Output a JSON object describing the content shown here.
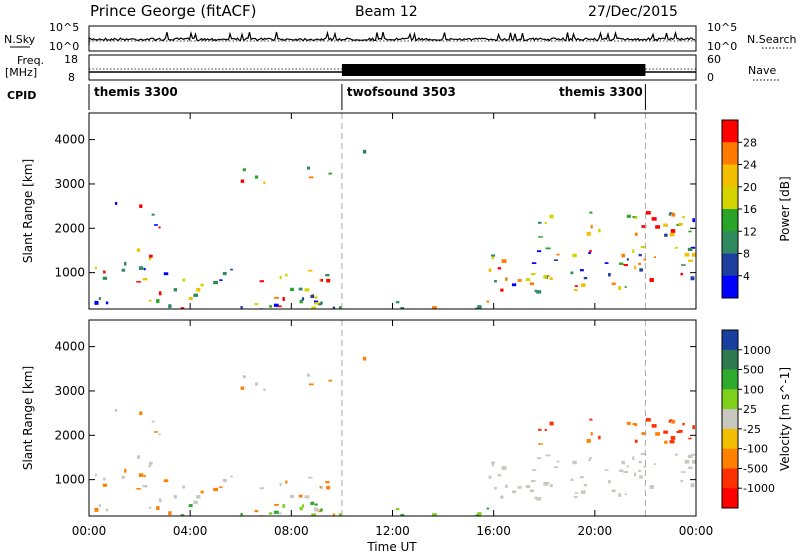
{
  "header": {
    "station": "Prince George (fitACF)",
    "beam": "Beam 12",
    "date": "27/Dec/2015"
  },
  "side_labels": {
    "nsky": "N.Sky",
    "nsearch": "N.Search",
    "freq_line1": "Freq.",
    "freq_line2": "[MHz]",
    "nave": "Nave",
    "cpid": "CPID",
    "exp_top": "10^5",
    "exp_bottom": "10^0"
  },
  "chart_data": [
    {
      "type": "line",
      "name": "noise",
      "ylabel_left": "N.Sky",
      "ylabel_right": "N.Search",
      "yticks_left": [
        "10^5",
        "10^0"
      ],
      "yticks_right": [
        "10^5",
        "10^0"
      ],
      "description_visible": "log-scale noise trace"
    },
    {
      "type": "line",
      "name": "frequency",
      "ylabel_left": "[MHz]",
      "ylabel_right": "Nave",
      "yticks_left": [
        "18",
        "8"
      ],
      "yticks_right": [
        "60",
        "0"
      ]
    },
    {
      "type": "table",
      "name": "cpid",
      "segments": [
        {
          "label": "themis 3300",
          "start_h": 0,
          "end_h": 10
        },
        {
          "label": "twofsound 3503",
          "start_h": 10,
          "end_h": 22
        },
        {
          "label": "themis 3300",
          "start_h": 22,
          "end_h": 24
        }
      ]
    },
    {
      "type": "heatmap",
      "name": "power",
      "ylabel": "Slant Range [km]",
      "yticks": [
        "1000",
        "2000",
        "3000",
        "4000"
      ],
      "ylim": [
        180,
        4600
      ],
      "colorbar_label": "Power [dB]",
      "colorbar_ticks": [
        "28",
        "24",
        "20",
        "16",
        "12",
        "8",
        "4"
      ],
      "colorbar_colors": [
        "#ff0000",
        "#ff7b00",
        "#f2c000",
        "#d4d400",
        "#28a428",
        "#2f8a5f",
        "#1f3fa0",
        "#0000ff"
      ]
    },
    {
      "type": "heatmap",
      "name": "velocity",
      "ylabel": "Slant Range [km]",
      "yticks": [
        "1000",
        "2000",
        "3000",
        "4000"
      ],
      "ylim": [
        180,
        4600
      ],
      "colorbar_label": "Velocity [m s^-1]",
      "colorbar_ticks": [
        "1000",
        "500",
        "100",
        "25",
        "-25",
        "-100",
        "-500",
        "-1000"
      ],
      "colorbar_colors": [
        "#1a3fa0",
        "#2d7a50",
        "#2faa2f",
        "#7fd01a",
        "#c8c8c0",
        "#f2c000",
        "#ff8000",
        "#ff3000",
        "#ff0000"
      ]
    }
  ],
  "xaxis": {
    "label": "Time UT",
    "ticks": [
      "00:00",
      "04:00",
      "08:00",
      "12:00",
      "16:00",
      "20:00",
      "00:00"
    ]
  }
}
